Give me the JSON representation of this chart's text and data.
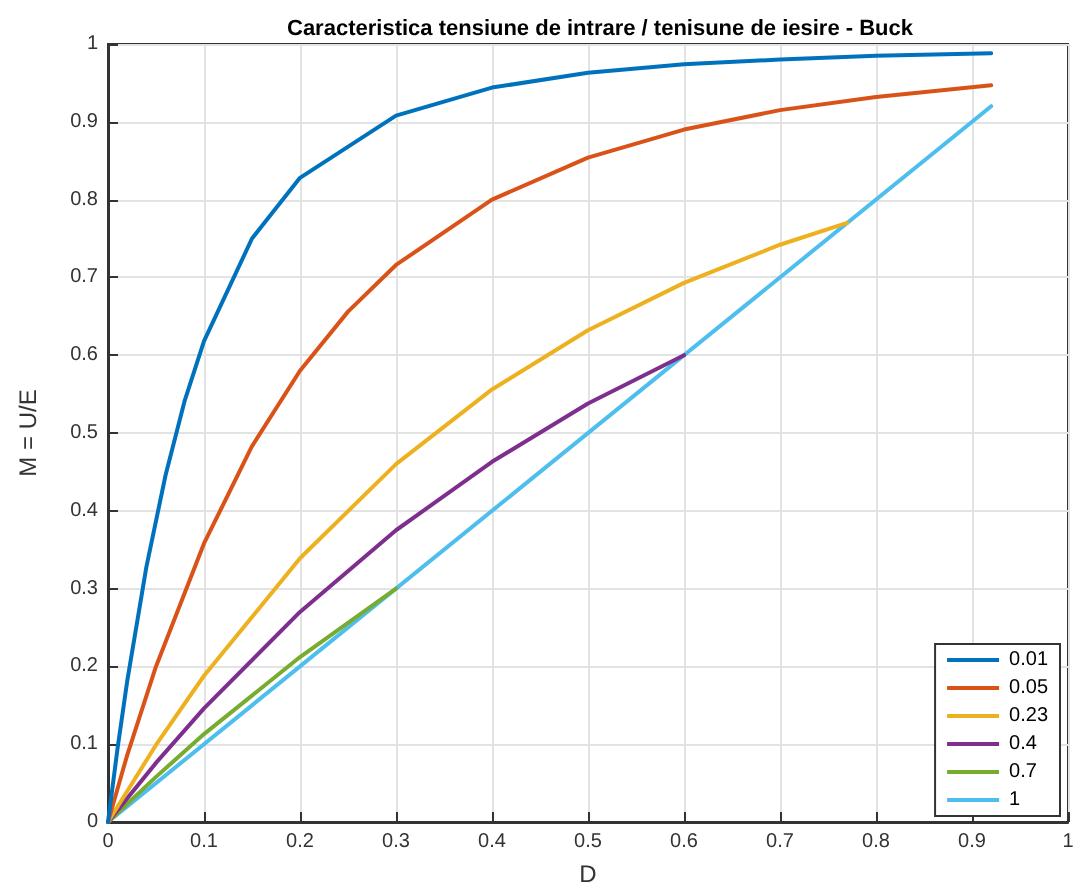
{
  "chart_data": {
    "type": "line",
    "title": "Caracteristica tensiune de intrare / tenisune de iesire - Buck",
    "xlabel": "D",
    "ylabel": "M = U/E",
    "xlim": [
      0,
      1
    ],
    "xticks": [
      0,
      0.1,
      0.2,
      0.3,
      0.4,
      0.5,
      0.6,
      0.7,
      0.8,
      0.9,
      1
    ],
    "ylim": [
      0,
      1
    ],
    "yticks": [
      0,
      0.1,
      0.2,
      0.3,
      0.4,
      0.5,
      0.6,
      0.7,
      0.8,
      0.9,
      1
    ],
    "grid": true,
    "legend": "bottom right",
    "marker": "none",
    "line_style": "solid",
    "series": [
      {
        "name": "0.01",
        "color": "#0072bd",
        "x": [
          0,
          0.01,
          0.02,
          0.04,
          0.06,
          0.08,
          0.1,
          0.15,
          0.2,
          0.3,
          0.4,
          0.5,
          0.6,
          0.7,
          0.8,
          0.92
        ],
        "values": [
          0,
          0.095,
          0.181,
          0.328,
          0.446,
          0.542,
          0.618,
          0.75,
          0.828,
          0.908,
          0.944,
          0.963,
          0.974,
          0.98,
          0.985,
          0.988
        ]
      },
      {
        "name": "0.05",
        "color": "#d95319",
        "x": [
          0,
          0.02,
          0.05,
          0.1,
          0.15,
          0.2,
          0.25,
          0.3,
          0.4,
          0.5,
          0.6,
          0.7,
          0.8,
          0.92
        ],
        "values": [
          0,
          0.086,
          0.2,
          0.358,
          0.483,
          0.58,
          0.656,
          0.716,
          0.8,
          0.854,
          0.89,
          0.915,
          0.932,
          0.947
        ]
      },
      {
        "name": "0.23",
        "color": "#edb120",
        "x": [
          0,
          0.05,
          0.1,
          0.2,
          0.3,
          0.4,
          0.5,
          0.6,
          0.7,
          0.77
        ],
        "values": [
          0,
          0.099,
          0.188,
          0.339,
          0.46,
          0.556,
          0.632,
          0.693,
          0.742,
          0.77
        ]
      },
      {
        "name": "0.4",
        "color": "#7e2f8e",
        "x": [
          0,
          0.05,
          0.1,
          0.2,
          0.3,
          0.4,
          0.5,
          0.6
        ],
        "values": [
          0,
          0.076,
          0.146,
          0.27,
          0.375,
          0.463,
          0.538,
          0.6
        ]
      },
      {
        "name": "0.7",
        "color": "#77ac30",
        "x": [
          0,
          0.05,
          0.1,
          0.2,
          0.3
        ],
        "values": [
          0,
          0.058,
          0.113,
          0.212,
          0.3
        ]
      },
      {
        "name": "1",
        "color": "#4dbeee",
        "x": [
          0,
          0.92
        ],
        "values": [
          0,
          0.92
        ]
      }
    ]
  }
}
